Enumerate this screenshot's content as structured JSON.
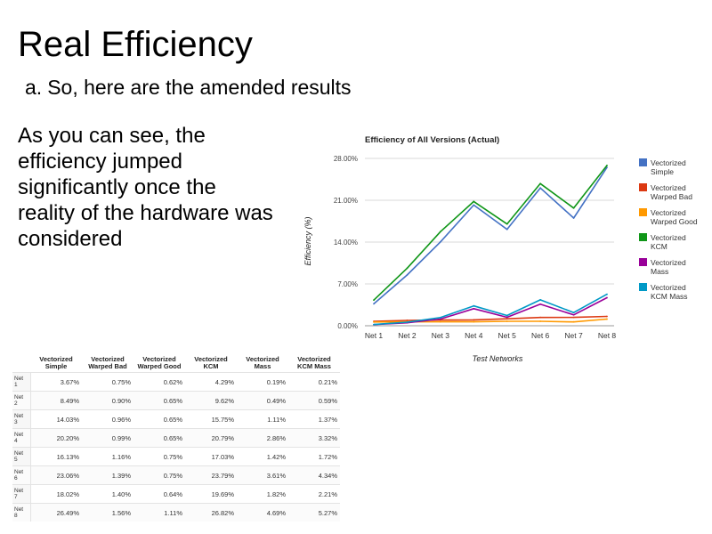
{
  "slide": {
    "title": "Real Efficiency",
    "subtitle_marker": "a.",
    "subtitle": "So, here are the amended results",
    "body_text": "As you can see, the efficiency jumped significantly once the reality of the hardware was considered"
  },
  "chart_data": {
    "type": "line",
    "title": "Efficiency of All Versions (Actual)",
    "xlabel": "Test Networks",
    "ylabel": "Efficiency (%)",
    "categories": [
      "Net 1",
      "Net 2",
      "Net 3",
      "Net 4",
      "Net 5",
      "Net 6",
      "Net 7",
      "Net 8"
    ],
    "y_ticks": [
      "0.00%",
      "7.00%",
      "14.00%",
      "21.00%",
      "28.00%"
    ],
    "ylim": [
      0,
      28
    ],
    "grid": true,
    "legend_position": "right",
    "series": [
      {
        "name": "Vectorized Simple",
        "color": "#4472c4",
        "values": [
          3.67,
          8.49,
          14.03,
          20.2,
          16.13,
          23.06,
          18.02,
          26.49
        ]
      },
      {
        "name": "Vectorized Warped Bad",
        "color": "#dc3912",
        "values": [
          0.75,
          0.9,
          0.96,
          0.99,
          1.16,
          1.39,
          1.4,
          1.56
        ]
      },
      {
        "name": "Vectorized Warped Good",
        "color": "#ff9900",
        "values": [
          0.62,
          0.65,
          0.65,
          0.65,
          0.75,
          0.75,
          0.64,
          1.11
        ]
      },
      {
        "name": "Vectorized KCM",
        "color": "#109618",
        "values": [
          4.29,
          9.62,
          15.75,
          20.79,
          17.03,
          23.79,
          19.69,
          26.82
        ]
      },
      {
        "name": "Vectorized Mass",
        "color": "#990099",
        "values": [
          0.19,
          0.49,
          1.11,
          2.86,
          1.42,
          3.61,
          1.82,
          4.69
        ]
      },
      {
        "name": "Vectorized KCM Mass",
        "color": "#0099c6",
        "values": [
          0.21,
          0.59,
          1.37,
          3.32,
          1.72,
          4.34,
          2.21,
          5.27
        ]
      }
    ]
  },
  "table": {
    "headers": [
      "",
      "Vectorized Simple",
      "Vectorized Warped Bad",
      "Vectorized Warped Good",
      "Vectorized KCM",
      "Vectorized Mass",
      "Vectorized KCM Mass"
    ],
    "rows": [
      [
        "Net 1",
        "3.67%",
        "0.75%",
        "0.62%",
        "4.29%",
        "0.19%",
        "0.21%"
      ],
      [
        "Net 2",
        "8.49%",
        "0.90%",
        "0.65%",
        "9.62%",
        "0.49%",
        "0.59%"
      ],
      [
        "Net 3",
        "14.03%",
        "0.96%",
        "0.65%",
        "15.75%",
        "1.11%",
        "1.37%"
      ],
      [
        "Net 4",
        "20.20%",
        "0.99%",
        "0.65%",
        "20.79%",
        "2.86%",
        "3.32%"
      ],
      [
        "Net 5",
        "16.13%",
        "1.16%",
        "0.75%",
        "17.03%",
        "1.42%",
        "1.72%"
      ],
      [
        "Net 6",
        "23.06%",
        "1.39%",
        "0.75%",
        "23.79%",
        "3.61%",
        "4.34%"
      ],
      [
        "Net 7",
        "18.02%",
        "1.40%",
        "0.64%",
        "19.69%",
        "1.82%",
        "2.21%"
      ],
      [
        "Net 8",
        "26.49%",
        "1.56%",
        "1.11%",
        "26.82%",
        "4.69%",
        "5.27%"
      ]
    ]
  }
}
